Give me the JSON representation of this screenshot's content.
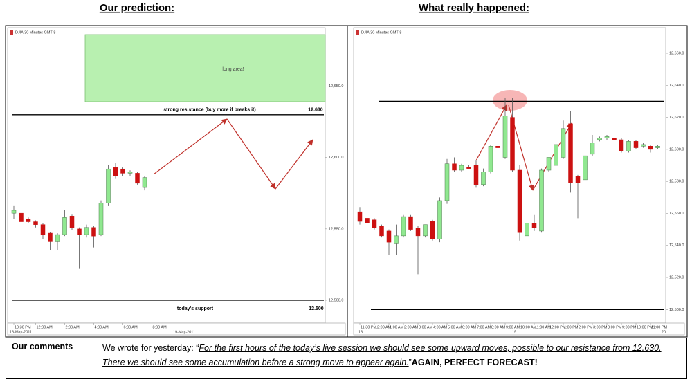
{
  "chart_data": [
    {
      "type": "candlestick",
      "title": "Our prediction:",
      "source": "DJIA 30 Minutes GMT-8",
      "categories": [
        "10:30 PM",
        null,
        null,
        "12:00 AM",
        null,
        null,
        null,
        "2:00 AM",
        null,
        null,
        null,
        "4:00 AM",
        null,
        null,
        null,
        "6:00 AM",
        null,
        null,
        null,
        "8:00 AM"
      ],
      "open": [
        12561,
        12561,
        12557,
        12555,
        12553,
        12547,
        12541,
        12546,
        12559,
        12550,
        12546,
        12551,
        12546,
        12568,
        12593,
        12592,
        12589,
        12589,
        12579,
        null
      ],
      "high": [
        12566,
        12562,
        12558,
        12556,
        12554,
        12548,
        12547,
        12563,
        12560,
        12551,
        12553,
        12552,
        12570,
        12595,
        12596,
        12593,
        12591,
        12590,
        12587,
        null
      ],
      "low": [
        12557,
        12553,
        12554,
        12551,
        12543,
        12535,
        12535,
        12545,
        12549,
        12522,
        12544,
        12537,
        12545,
        12566,
        12585,
        12587,
        12587,
        12581,
        12577,
        null
      ],
      "close": [
        12563,
        12555,
        12555,
        12553,
        12546,
        12541,
        12546,
        12558,
        12551,
        12546,
        12551,
        12545,
        12568,
        12592,
        12587,
        12589,
        12590,
        12582,
        12586,
        null
      ],
      "up_color": "#90e890",
      "down_color": "#cc1111",
      "ylim": [
        12484,
        12691
      ],
      "yticks": [
        {
          "value": 12500,
          "label": "12,500.0"
        },
        {
          "value": 12550,
          "label": "12,550.0"
        },
        {
          "value": 12600,
          "label": "12,600.0"
        },
        {
          "value": 12650,
          "label": "12,650.0"
        }
      ],
      "dates": [
        "18-May-2011",
        "19-May-2011"
      ],
      "annotations": [
        "long area!"
      ],
      "levels": {
        "values": [
          12630,
          12500
        ],
        "value_labels": [
          "12.630",
          "12.500"
        ],
        "labels": [
          "strong resistance (buy more if breaks it)",
          "today's support"
        ]
      }
    },
    {
      "type": "candlestick",
      "title": "What really happened:",
      "source": "DJIA 30 Minutes GMT-8",
      "categories": [
        "11:30 PM",
        null,
        "12:00 AM",
        null,
        "1:00 AM",
        null,
        "2:00 AM",
        null,
        "3:00 AM",
        null,
        "4:00 AM",
        null,
        "5:00 AM",
        null,
        "6:00 AM",
        null,
        "7:00 AM",
        null,
        "8:00 AM",
        null,
        "9:00 AM",
        null,
        "10:00 AM",
        null,
        "11:00 AM",
        null,
        "12:00 PM",
        null,
        "1:00 PM",
        null,
        "2:00 PM",
        null,
        "3:00 PM",
        null,
        "8:00 PM",
        null,
        "9:00 PM",
        null,
        "10:00 PM",
        null,
        "11:00 PM",
        null
      ],
      "open": [
        12561,
        12557,
        12556,
        12552,
        12549,
        12541,
        12546,
        12558,
        12551,
        12546,
        12555,
        12544,
        12568,
        12591,
        12587,
        12589,
        12590,
        12578,
        12586,
        12602,
        12595,
        12620,
        12587,
        12546,
        12554,
        12549,
        12587,
        12590,
        12595,
        12616,
        12583,
        12581,
        12597,
        12606,
        12607,
        12607,
        12606,
        12599,
        12605,
        12602,
        12602,
        12601
      ],
      "high": [
        12564,
        12558,
        12557,
        12553,
        12550,
        12553,
        12559,
        12559,
        12552,
        12553,
        12556,
        12570,
        12594,
        12595,
        12591,
        12590,
        12593,
        12588,
        12603,
        12604,
        12632,
        12632,
        12590,
        12555,
        12559,
        12588,
        12595,
        12616,
        12618,
        12624,
        12584,
        12597,
        12609,
        12608,
        12609,
        12608,
        12607,
        12606,
        12606,
        12604,
        12603,
        12603
      ],
      "low": [
        12553,
        12553,
        12550,
        12545,
        12534,
        12534,
        12545,
        12549,
        12522,
        12545,
        12543,
        12542,
        12566,
        12586,
        12586,
        12588,
        12576,
        12577,
        12585,
        12599,
        12594,
        12586,
        12543,
        12530,
        12549,
        12548,
        12586,
        12589,
        12594,
        12573,
        12557,
        12580,
        12596,
        12605,
        12606,
        12604,
        12598,
        12598,
        12600,
        12601,
        12598,
        12600
      ],
      "close": [
        12555,
        12554,
        12551,
        12546,
        12542,
        12546,
        12558,
        12550,
        12546,
        12553,
        12544,
        12568,
        12591,
        12587,
        12590,
        12588,
        12578,
        12586,
        12602,
        12601,
        12621,
        12587,
        12548,
        12554,
        12551,
        12587,
        12595,
        12603,
        12613,
        12579,
        12579,
        12596,
        12604,
        12607,
        12608,
        12606,
        12599,
        12605,
        12601,
        12603,
        12600,
        12602
      ],
      "up_color": "#90e890",
      "down_color": "#cc1111",
      "ylim": [
        12491.5,
        12676
      ],
      "yticks": [
        {
          "value": 12500,
          "label": "12,500.0"
        },
        {
          "value": 12520,
          "label": "12,520.0"
        },
        {
          "value": 12540,
          "label": "12,540.0"
        },
        {
          "value": 12560,
          "label": "12,560.0"
        },
        {
          "value": 12580,
          "label": "12,580.0"
        },
        {
          "value": 12600,
          "label": "12,600.0"
        },
        {
          "value": 12620,
          "label": "12,620.0"
        },
        {
          "value": 12640,
          "label": "12,640.0"
        },
        {
          "value": 12660,
          "label": "12,660.0"
        }
      ],
      "dates": [
        "18",
        "19",
        "20"
      ],
      "levels": {
        "values": [
          12630,
          12500
        ]
      }
    }
  ],
  "comments": {
    "heading": "Our comments",
    "intro": "We wrote for yesterday: “",
    "quote": "For the first hours of the today’s live session we should see some upward moves, possible to our resistance from 12.630. There we should see some accumulation before a strong move to appear again.",
    "close": "”",
    "verdict": "AGAIN, PERFECT FORECAST!"
  }
}
